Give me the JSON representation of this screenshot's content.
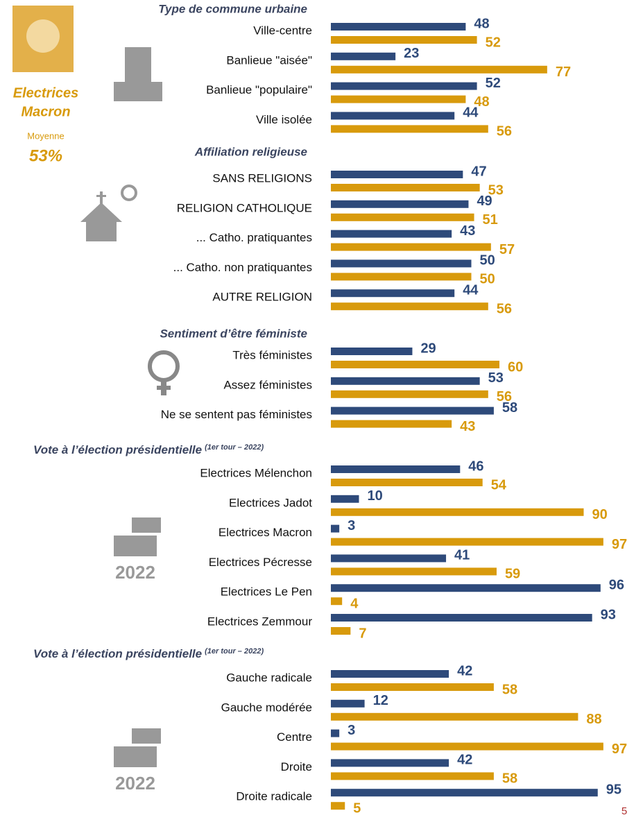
{
  "sidebar": {
    "title_line1": "Electrices",
    "title_line2": "Macron",
    "average_label": "Moyenne",
    "average_value": "53%"
  },
  "page_number": "5",
  "chart_data": [
    {
      "type": "bar",
      "title": "Type de commune urbaine",
      "categories": [
        "Ville-centre",
        "Banlieue \"aisée\"",
        "Banlieue \"populaire\"",
        "Ville isolée"
      ],
      "series": [
        {
          "color": "#2e4a7a",
          "values": [
            48,
            23,
            52,
            44
          ]
        },
        {
          "color": "#d89a0c",
          "values": [
            52,
            77,
            48,
            56
          ]
        }
      ],
      "xlim": [
        0,
        100
      ]
    },
    {
      "type": "bar",
      "title": "Affiliation religieuse",
      "categories": [
        "SANS RELIGIONS",
        "RELIGION CATHOLIQUE",
        "... Catho. pratiquantes",
        "... Catho. non pratiquantes",
        "AUTRE RELIGION"
      ],
      "series": [
        {
          "color": "#2e4a7a",
          "values": [
            47,
            49,
            43,
            50,
            44
          ]
        },
        {
          "color": "#d89a0c",
          "values": [
            53,
            51,
            57,
            50,
            56
          ]
        }
      ],
      "xlim": [
        0,
        100
      ]
    },
    {
      "type": "bar",
      "title": "Sentiment d’être féministe",
      "categories": [
        "Très féministes",
        "Assez féministes",
        "Ne se sentent pas féministes"
      ],
      "series": [
        {
          "color": "#2e4a7a",
          "values": [
            29,
            53,
            58
          ]
        },
        {
          "color": "#d89a0c",
          "values": [
            60,
            56,
            43
          ]
        }
      ],
      "xlim": [
        0,
        100
      ]
    },
    {
      "type": "bar",
      "title": "Vote à l’élection présidentielle",
      "subtitle": "(1er tour – 2022)",
      "categories": [
        "Electrices Mélenchon",
        "Electrices  Jadot",
        "Electrices Macron",
        "Electrices Pécresse",
        "Electrices Le Pen",
        "Electrices Zemmour"
      ],
      "series": [
        {
          "color": "#2e4a7a",
          "values": [
            46,
            10,
            3,
            41,
            96,
            93
          ]
        },
        {
          "color": "#d89a0c",
          "values": [
            54,
            90,
            97,
            59,
            4,
            7
          ]
        }
      ],
      "xlim": [
        0,
        100
      ]
    },
    {
      "type": "bar",
      "title": "Vote à l’élection présidentielle",
      "subtitle": "(1er tour – 2022)",
      "categories": [
        "Gauche radicale",
        "Gauche modérée",
        "Centre",
        "Droite",
        "Droite radicale"
      ],
      "series": [
        {
          "color": "#2e4a7a",
          "values": [
            42,
            12,
            3,
            42,
            95
          ]
        },
        {
          "color": "#d89a0c",
          "values": [
            58,
            88,
            97,
            58,
            5
          ]
        }
      ],
      "xlim": [
        0,
        100
      ]
    }
  ]
}
